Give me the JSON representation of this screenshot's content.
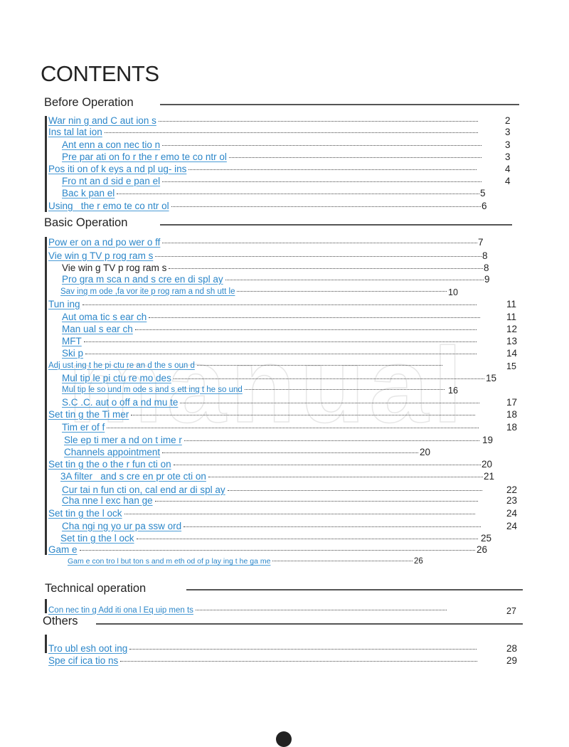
{
  "title": "CONTENTS",
  "watermark": "manual",
  "sections": [
    {
      "heading": "Before Operation",
      "entries": [
        {
          "text": "War nin g and C aut ion s",
          "page": "2"
        },
        {
          "text": "Ins tal lat ion",
          "page": "3"
        },
        {
          "text": "Ant enn a con nec tio n",
          "page": "3"
        },
        {
          "text": "Pre par ati on fo r the r emo te co ntr ol",
          "page": "3"
        },
        {
          "text": "Pos iti on of k eys a nd pl ug- ins",
          "page": "4"
        },
        {
          "text": "Fro nt an d sid e pan el",
          "page": "4"
        },
        {
          "text": "Bac k pan el",
          "page": "5"
        },
        {
          "text": "Using   the r emo te co ntr ol",
          "page": "6"
        }
      ]
    },
    {
      "heading": "Basic Operation",
      "entries": [
        {
          "text": "Pow er on a nd po wer o ff",
          "page": "7"
        },
        {
          "text": "Vie win g TV p rog ram s",
          "page": "8"
        },
        {
          "text": "Vie win g TV p rog ram s",
          "page": "8"
        },
        {
          "text": "Pro gra m sca n and s cre en di spl ay",
          "page": "9"
        },
        {
          "text": "Sav ing m ode ,fa vor ite p rog ram a nd sh utt le",
          "page": "10"
        },
        {
          "text": "Tun ing",
          "page": "11"
        },
        {
          "text": "Aut oma tic s ear ch",
          "page": "11"
        },
        {
          "text": "Man ual s ear ch",
          "page": "12"
        },
        {
          "text": "MFT",
          "page": "13"
        },
        {
          "text": "Ski p",
          "page": "14"
        },
        {
          "text": "Adj ust ing t he pi ctu re an d the s oun d",
          "page": "15"
        },
        {
          "text": "Mul tip le pi ctu re mo des",
          "page": "15"
        },
        {
          "text": "Mul tip le so und m ode s and s ett ing t he so und",
          "page": "16"
        },
        {
          "text": "S.C .C. aut o off a nd mu te",
          "page": "17"
        },
        {
          "text": "Set tin g the Ti mer",
          "page": "18"
        },
        {
          "text": "Tim er of f",
          "page": "18"
        },
        {
          "text": "Sle ep ti mer a nd on t ime r",
          "page": "19"
        },
        {
          "text": "Channels appointment",
          "page": "20"
        },
        {
          "text": "Set tin g the o the r fun cti on",
          "page": "20"
        },
        {
          "text": "3A filter   and s cre en pr ote cti on",
          "page": "21"
        },
        {
          "text": "Cur tai n fun cti on, cal end ar di spl ay",
          "page": "22"
        },
        {
          "text": "Cha nne l exc han ge",
          "page": "23"
        },
        {
          "text": "Set tin g the l ock",
          "page": "24"
        },
        {
          "text": "Cha ngi ng yo ur pa ssw ord",
          "page": "24"
        },
        {
          "text": "Set tin g the l ock",
          "page": "25"
        },
        {
          "text": "Gam e",
          "page": "26"
        },
        {
          "text": "Gam e con tro l but ton s and m eth od of p lay ing t he ga me",
          "page": "26"
        }
      ]
    },
    {
      "heading": "Technical operation",
      "entries": [
        {
          "text": "Con nec tin g Add iti ona l Eq uip men ts",
          "page": "27"
        }
      ]
    },
    {
      "heading": "Others",
      "entries": [
        {
          "text": "Tro ubl esh oot ing",
          "page": "28"
        },
        {
          "text": "Spe cif ica tio ns",
          "page": "29"
        }
      ]
    }
  ],
  "colors": {
    "link": "#2b86c9",
    "text": "#222222"
  }
}
